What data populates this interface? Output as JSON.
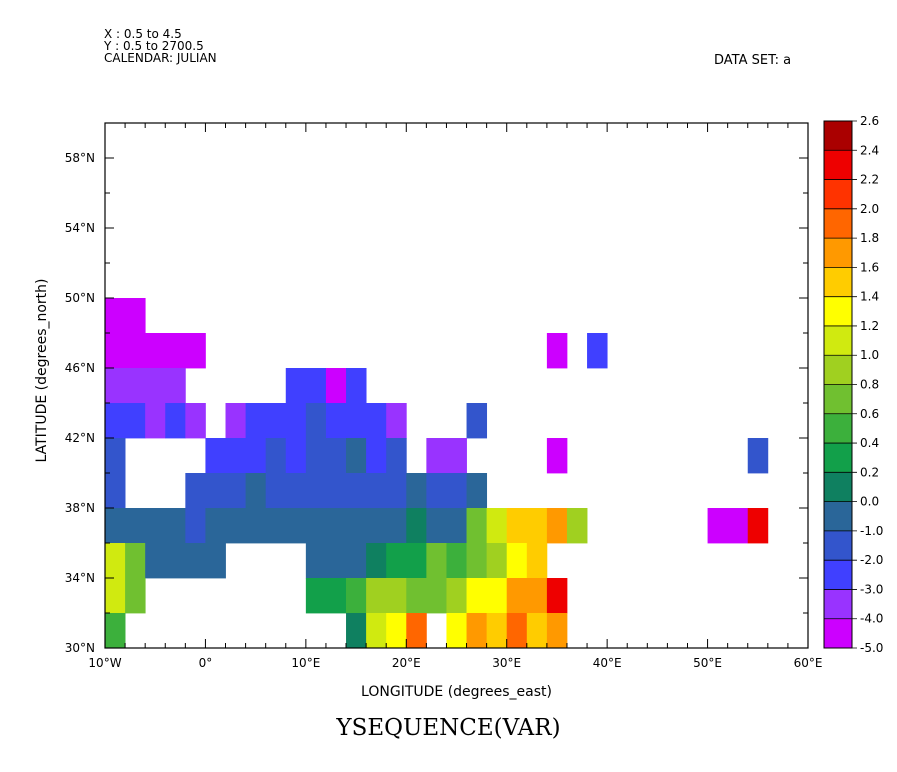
{
  "header": {
    "x_range": "X : 0.5 to 4.5",
    "y_range": "Y : 0.5 to 2700.5",
    "calendar": "CALENDAR: JULIAN",
    "dataset": "DATA SET: a"
  },
  "title": "YSEQUENCE(VAR)",
  "chart_data": {
    "type": "heatmap",
    "title": "YSEQUENCE(VAR)",
    "xlabel": "LONGITUDE (degrees_east)",
    "ylabel": "LATITUDE (degrees_north)",
    "xlim": [
      -10,
      60
    ],
    "ylim": [
      30,
      60
    ],
    "x_ticks": [
      -10,
      0,
      10,
      20,
      30,
      40,
      50,
      60
    ],
    "x_tick_labels": [
      "10°W",
      "0°",
      "10°E",
      "20°E",
      "30°E",
      "40°E",
      "50°E",
      "60°E"
    ],
    "y_ticks": [
      30,
      34,
      38,
      42,
      46,
      50,
      54,
      58
    ],
    "y_tick_labels": [
      "30°N",
      "34°N",
      "38°N",
      "42°N",
      "46°N",
      "50°N",
      "54°N",
      "58°N"
    ],
    "grid": false,
    "colorbar": {
      "levels": [
        -5.0,
        -4.0,
        -3.0,
        -2.0,
        -1.0,
        0.0,
        0.2,
        0.4,
        0.6,
        0.8,
        1.0,
        1.2,
        1.4,
        1.6,
        1.8,
        2.0,
        2.2,
        2.4,
        2.6
      ],
      "labels": [
        "-5.0",
        "-4.0",
        "-3.0",
        "-2.0",
        "-1.0",
        "0.0",
        "0.2",
        "0.4",
        "0.6",
        "0.8",
        "1.0",
        "1.2",
        "1.4",
        "1.6",
        "1.8",
        "2.0",
        "2.2",
        "2.4",
        "2.6"
      ],
      "colors": [
        "#cc00ff",
        "#9933ff",
        "#4040ff",
        "#3355cc",
        "#2a6699",
        "#0f8060",
        "#12a04a",
        "#3cb03c",
        "#70c030",
        "#a0d020",
        "#d0ea10",
        "#ffff00",
        "#ffcc00",
        "#ff9900",
        "#ff6600",
        "#ff3300",
        "#ee0000",
        "#aa0000"
      ]
    },
    "cells": [
      [
        -10,
        50,
        -6,
        48,
        0
      ],
      [
        -10,
        48,
        0,
        46,
        0
      ],
      [
        -10,
        46,
        -2,
        44,
        1
      ],
      [
        -10,
        44,
        -6,
        42,
        2
      ],
      [
        -6,
        44,
        -4,
        42,
        1
      ],
      [
        -4,
        44,
        -2,
        42,
        2
      ],
      [
        -2,
        44,
        0,
        42,
        1
      ],
      [
        8,
        46,
        12,
        44,
        2
      ],
      [
        12,
        46,
        14,
        44,
        0
      ],
      [
        14,
        46,
        16,
        44,
        2
      ],
      [
        2,
        44,
        4,
        42,
        1
      ],
      [
        4,
        44,
        10,
        42,
        2
      ],
      [
        10,
        44,
        12,
        42,
        3
      ],
      [
        12,
        44,
        18,
        42,
        2
      ],
      [
        18,
        44,
        20,
        42,
        1
      ],
      [
        26,
        44,
        28,
        42,
        3
      ],
      [
        34,
        48,
        36,
        46,
        0
      ],
      [
        38,
        48,
        40,
        46,
        2
      ],
      [
        -10,
        42,
        -8,
        38,
        3
      ],
      [
        0,
        42,
        6,
        40,
        2
      ],
      [
        6,
        42,
        8,
        40,
        3
      ],
      [
        8,
        42,
        10,
        40,
        2
      ],
      [
        10,
        42,
        14,
        40,
        3
      ],
      [
        14,
        42,
        16,
        40,
        4
      ],
      [
        16,
        42,
        18,
        40,
        2
      ],
      [
        18,
        42,
        20,
        40,
        3
      ],
      [
        22,
        42,
        26,
        40,
        1
      ],
      [
        34,
        42,
        36,
        40,
        0
      ],
      [
        54,
        42,
        56,
        40,
        3
      ],
      [
        -2,
        40,
        4,
        38,
        3
      ],
      [
        4,
        40,
        6,
        38,
        4
      ],
      [
        6,
        40,
        20,
        38,
        3
      ],
      [
        20,
        40,
        22,
        38,
        4
      ],
      [
        22,
        40,
        26,
        38,
        3
      ],
      [
        26,
        40,
        28,
        38,
        4
      ],
      [
        -10,
        38,
        -2,
        36,
        4
      ],
      [
        -2,
        38,
        0,
        36,
        3
      ],
      [
        0,
        38,
        20,
        36,
        4
      ],
      [
        20,
        38,
        22,
        36,
        5
      ],
      [
        22,
        38,
        26,
        36,
        4
      ],
      [
        26,
        38,
        28,
        36,
        8
      ],
      [
        28,
        38,
        30,
        36,
        10
      ],
      [
        30,
        38,
        34,
        36,
        12
      ],
      [
        34,
        38,
        36,
        36,
        13
      ],
      [
        36,
        38,
        38,
        36,
        9
      ],
      [
        50,
        38,
        54,
        36,
        0
      ],
      [
        54,
        38,
        56,
        36,
        16
      ],
      [
        -10,
        36,
        -8,
        34,
        10
      ],
      [
        -8,
        36,
        -6,
        34,
        8
      ],
      [
        -6,
        36,
        2,
        34,
        4
      ],
      [
        10,
        36,
        16,
        34,
        4
      ],
      [
        16,
        36,
        18,
        34,
        5
      ],
      [
        18,
        36,
        22,
        34,
        6
      ],
      [
        22,
        36,
        24,
        34,
        8
      ],
      [
        24,
        36,
        26,
        34,
        7
      ],
      [
        26,
        36,
        28,
        34,
        8
      ],
      [
        28,
        36,
        30,
        34,
        9
      ],
      [
        30,
        36,
        32,
        34,
        11
      ],
      [
        32,
        36,
        34,
        34,
        12
      ],
      [
        -10,
        34,
        -8,
        32,
        10
      ],
      [
        -8,
        34,
        -6,
        32,
        8
      ],
      [
        10,
        34,
        14,
        32,
        6
      ],
      [
        14,
        34,
        16,
        32,
        7
      ],
      [
        16,
        34,
        20,
        32,
        9
      ],
      [
        20,
        34,
        24,
        32,
        8
      ],
      [
        24,
        34,
        26,
        32,
        9
      ],
      [
        26,
        34,
        30,
        32,
        11
      ],
      [
        30,
        34,
        34,
        32,
        13
      ],
      [
        34,
        34,
        36,
        32,
        16
      ],
      [
        -10,
        32,
        -8,
        30,
        7
      ],
      [
        14,
        32,
        16,
        30,
        5
      ],
      [
        16,
        32,
        18,
        30,
        10
      ],
      [
        18,
        32,
        20,
        30,
        11
      ],
      [
        20,
        32,
        22,
        30,
        14
      ],
      [
        24,
        32,
        26,
        30,
        11
      ],
      [
        26,
        32,
        28,
        30,
        13
      ],
      [
        28,
        32,
        30,
        30,
        12
      ],
      [
        30,
        32,
        32,
        30,
        14
      ],
      [
        32,
        32,
        34,
        30,
        12
      ],
      [
        34,
        32,
        36,
        30,
        13
      ]
    ]
  }
}
